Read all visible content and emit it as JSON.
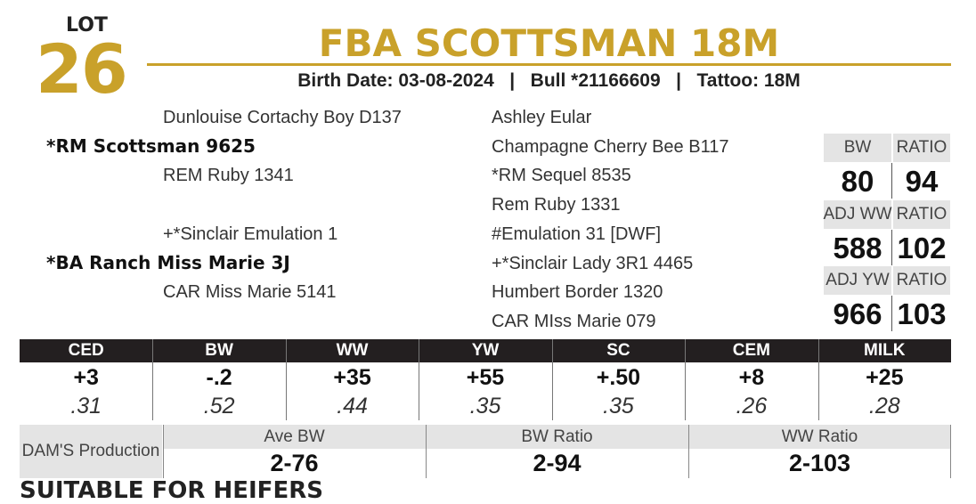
{
  "lot": {
    "label": "LOT",
    "number": "26"
  },
  "title": "FBA SCOTTSMAN 18M",
  "info": "Birth Date: 03-08-2024   |   Bull *21166609   |   Tattoo: 18M",
  "pedigree": {
    "sire": "*RM Scottsman 9625",
    "sire_sire": "Dunlouise Cortachy Boy D137",
    "sire_dam": "REM Ruby 1341",
    "dam": "*BA Ranch Miss Marie 3J",
    "dam_sire": "+*Sinclair Emulation 1",
    "dam_dam": "CAR Miss Marie 5141",
    "third_generation": [
      "Ashley Eular",
      "Champagne Cherry Bee B117",
      "*RM Sequel 8535",
      "Rem Ruby 1331",
      "#Emulation 31 [DWF]",
      "+*Sinclair Lady 3R1 4465",
      "Humbert Border 1320",
      "CAR MIss Marie 079"
    ]
  },
  "performance": [
    {
      "headers": [
        "BW",
        "RATIO"
      ],
      "values": [
        80,
        94
      ]
    },
    {
      "headers": [
        "ADJ WW",
        "RATIO"
      ],
      "values": [
        588,
        102
      ]
    },
    {
      "headers": [
        "ADJ YW",
        "RATIO"
      ],
      "values": [
        966,
        103
      ]
    }
  ],
  "epd": {
    "headers": [
      "CED",
      "BW",
      "WW",
      "YW",
      "SC",
      "CEM",
      "MILK"
    ],
    "values": [
      "+3",
      "-.2",
      "+35",
      "+55",
      "+.50",
      "+8",
      "+25"
    ],
    "accuracy": [
      ".31",
      ".52",
      ".44",
      ".35",
      ".35",
      ".26",
      ".28"
    ]
  },
  "dam_production": {
    "label": "DAM'S Production",
    "headers": [
      "Ave BW",
      "BW Ratio",
      "WW Ratio"
    ],
    "values": [
      "2-76",
      "2-94",
      "2-103"
    ]
  },
  "footer": "SUITABLE FOR HEIFERS"
}
